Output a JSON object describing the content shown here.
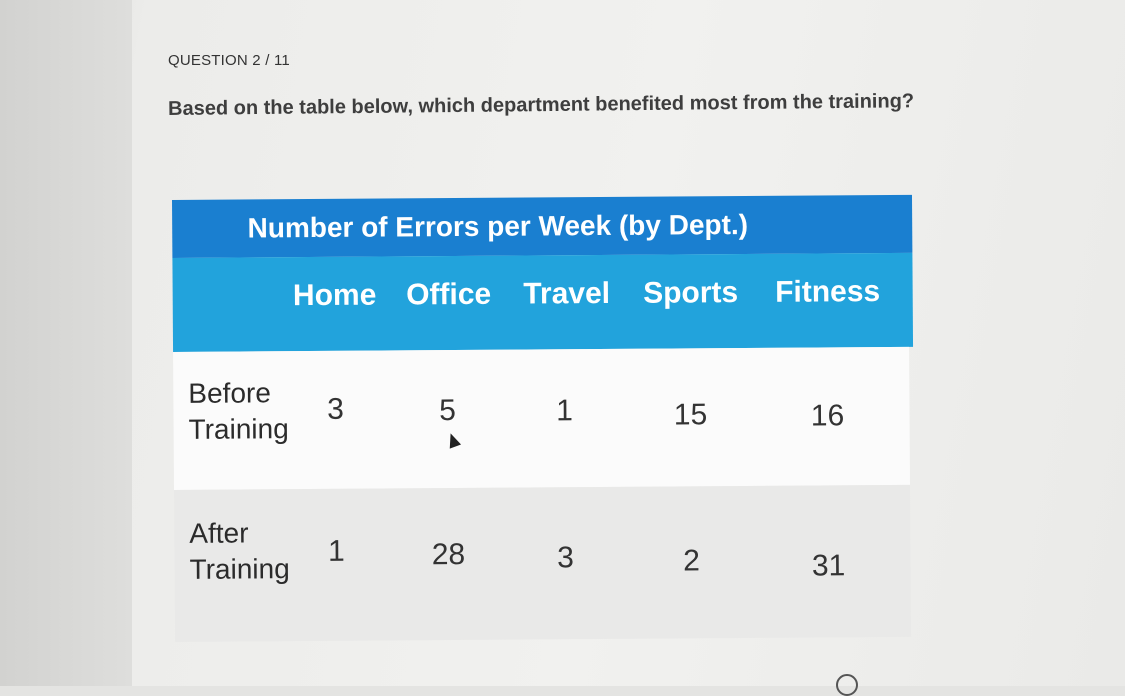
{
  "question": {
    "counter": "QUESTION 2 / 11",
    "prompt": "Based on the table below, which department benefited most from the training?"
  },
  "table": {
    "title": "Number of Errors per Week (by Dept.)",
    "columns": [
      "Home",
      "Office",
      "Travel",
      "Sports",
      "Fitness"
    ],
    "rows": [
      {
        "label_line1": "Before",
        "label_line2": "Training",
        "values": [
          "3",
          "5",
          "1",
          "15",
          "16"
        ]
      },
      {
        "label_line1": "After",
        "label_line2": "Training",
        "values": [
          "1",
          "28",
          "3",
          "2",
          "31"
        ]
      }
    ]
  },
  "colors": {
    "title_bg": "#1a7fd0",
    "header_bg": "#22a3dc",
    "row1_bg": "#fbfbfb",
    "row2_bg": "#e9e9e8"
  },
  "icons": {
    "cursor": "mouse-pointer-icon",
    "corner": "circle-icon"
  }
}
